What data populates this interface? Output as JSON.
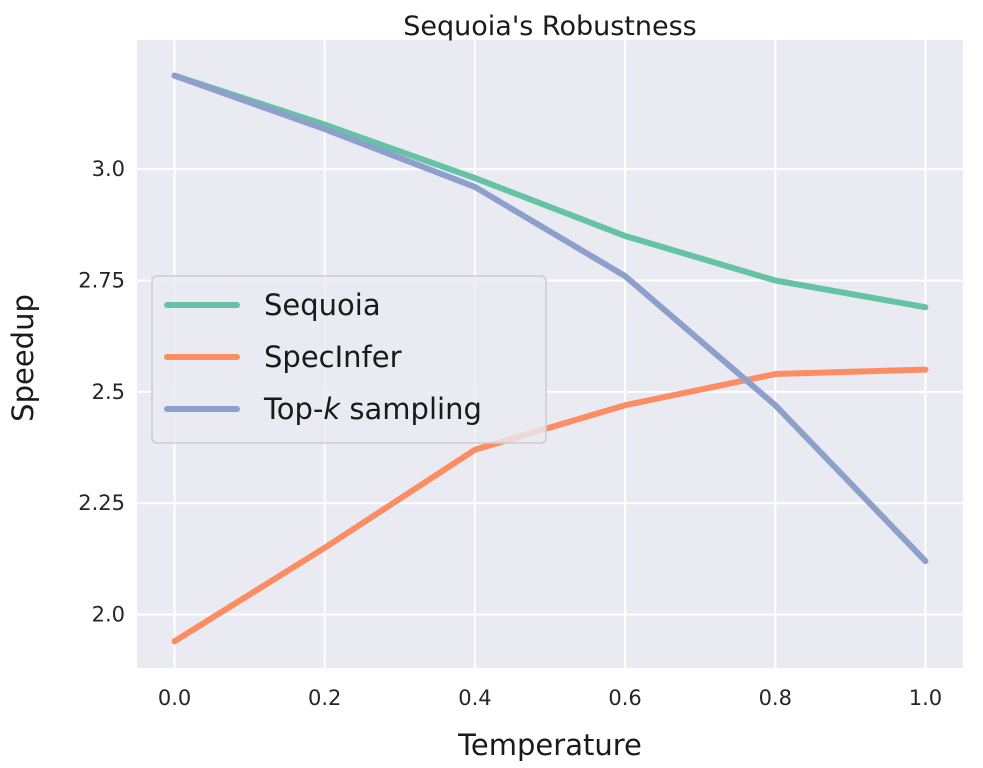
{
  "chart_data": {
    "type": "line",
    "title": "Sequoia's Robustness",
    "xlabel": "Temperature",
    "ylabel": "Speedup",
    "x": [
      0.0,
      0.2,
      0.4,
      0.6,
      0.8,
      1.0
    ],
    "xticks": [
      "0.0",
      "0.2",
      "0.4",
      "0.6",
      "0.8",
      "1.0"
    ],
    "yticks": [
      "2.0",
      "2.25",
      "2.5",
      "2.75",
      "3.0"
    ],
    "ytick_values": [
      2.0,
      2.25,
      2.5,
      2.75,
      3.0
    ],
    "xlim": [
      -0.05,
      1.05
    ],
    "ylim": [
      1.88,
      3.29
    ],
    "grid": true,
    "background": "#eaeaf2",
    "legend_placement": "center-left",
    "series": [
      {
        "name": "Sequoia",
        "color": "#66c2a5",
        "values": [
          3.21,
          3.1,
          2.98,
          2.85,
          2.75,
          2.69
        ]
      },
      {
        "name": "SpecInfer",
        "color": "#fc8d62",
        "values": [
          1.94,
          2.15,
          2.37,
          2.47,
          2.54,
          2.55
        ]
      },
      {
        "name": "Top-k sampling",
        "name_parts": [
          "Top-",
          "k",
          " sampling"
        ],
        "color": "#8da0cb",
        "values": [
          3.21,
          3.09,
          2.96,
          2.76,
          2.47,
          2.12
        ]
      }
    ]
  }
}
